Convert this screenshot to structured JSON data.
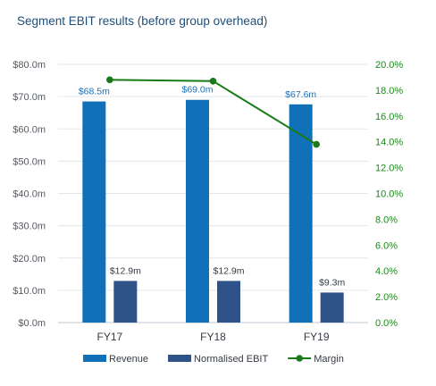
{
  "chart_data": {
    "type": "bar",
    "title": "Segment EBIT results (before group overhead)",
    "categories": [
      "FY17",
      "FY18",
      "FY19"
    ],
    "series": [
      {
        "name": "Revenue",
        "type": "bar",
        "axis": "left",
        "color": "#1070b8",
        "values": [
          68.5,
          69.0,
          67.6
        ],
        "labels": [
          "$68.5m",
          "$69.0m",
          "$67.6m"
        ]
      },
      {
        "name": "Normalised EBIT",
        "type": "bar",
        "axis": "left",
        "color": "#2f5288",
        "values": [
          12.9,
          12.9,
          9.3
        ],
        "labels": [
          "$12.9m",
          "$12.9m",
          "$9.3m"
        ]
      },
      {
        "name": "Margin",
        "type": "line",
        "axis": "right",
        "color": "#1a7a1a",
        "values": [
          18.8,
          18.7,
          13.8
        ]
      }
    ],
    "y_left": {
      "min": 0,
      "max": 80,
      "ticks": [
        0,
        10,
        20,
        30,
        40,
        50,
        60,
        70,
        80
      ],
      "tick_labels": [
        "$0.0m",
        "$10.0m",
        "$20.0m",
        "$30.0m",
        "$40.0m",
        "$50.0m",
        "$60.0m",
        "$70.0m",
        "$80.0m"
      ]
    },
    "y_right": {
      "min": 0,
      "max": 20,
      "ticks": [
        0,
        2,
        4,
        6,
        8,
        10,
        12,
        14,
        16,
        18,
        20
      ],
      "tick_labels": [
        "0.0%",
        "2.0%",
        "4.0%",
        "6.0%",
        "8.0%",
        "10.0%",
        "12.0%",
        "14.0%",
        "16.0%",
        "18.0%",
        "20.0%"
      ]
    },
    "grid": true,
    "legend": "bottom"
  }
}
